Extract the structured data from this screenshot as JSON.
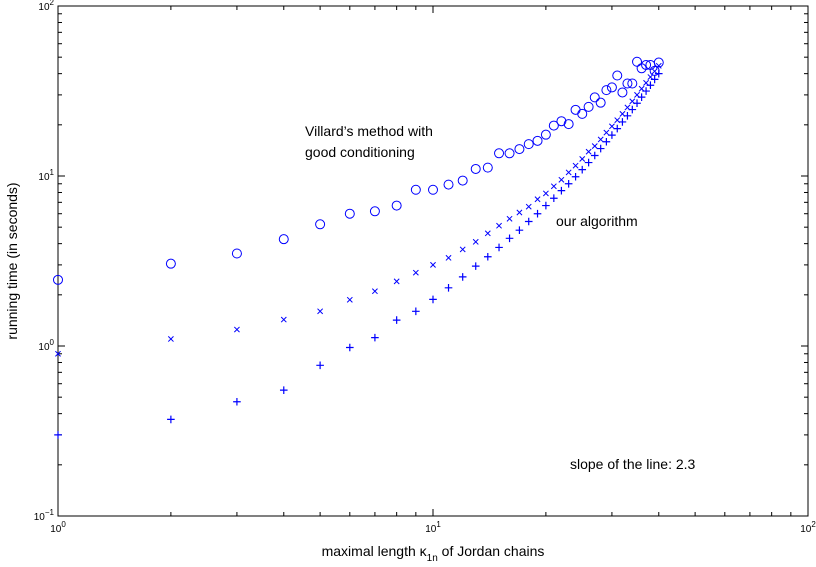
{
  "chart_data": {
    "type": "scatter",
    "xscale": "log",
    "yscale": "log",
    "xlim": [
      1,
      100
    ],
    "ylim": [
      0.1,
      100
    ],
    "grid": false,
    "xlabel": {
      "pre": "maximal length ",
      "sym": "κ",
      "sub": "1n",
      "post": " of Jordan chains"
    },
    "ylabel": "running time (in seconds)",
    "xticks": [
      {
        "value": 1,
        "base": "10",
        "exp": "0"
      },
      {
        "value": 10,
        "base": "10",
        "exp": "1"
      },
      {
        "value": 100,
        "base": "10",
        "exp": "2"
      }
    ],
    "yticks": [
      {
        "value": 0.1,
        "base": "10",
        "exp": "−1"
      },
      {
        "value": 1,
        "base": "10",
        "exp": "0"
      },
      {
        "value": 10,
        "base": "10",
        "exp": "1"
      },
      {
        "value": 100,
        "base": "10",
        "exp": "2"
      }
    ],
    "annotations": {
      "villard_line1": "Villard’s method with",
      "villard_line2": "good conditioning",
      "ours": "our algorithm",
      "slope": "slope of the line: 2.3"
    },
    "marker_color": "#0000ff",
    "series": [
      {
        "marker": "circle",
        "x": [
          1,
          2,
          3,
          4,
          5,
          6,
          7,
          8,
          9,
          10,
          11,
          12,
          13,
          14,
          15,
          16,
          17,
          18,
          19,
          20,
          21,
          22,
          23,
          24,
          25,
          26,
          27,
          28,
          29,
          30,
          31,
          32,
          33,
          34,
          35,
          36,
          37,
          38,
          39,
          40
        ],
        "y": [
          2.45,
          3.05,
          3.5,
          4.25,
          5.2,
          6.0,
          6.2,
          6.7,
          8.3,
          8.3,
          8.9,
          9.4,
          11.0,
          11.2,
          13.6,
          13.6,
          14.4,
          15.4,
          16.1,
          17.5,
          19.8,
          21.0,
          20.2,
          24.5,
          23.2,
          25.5,
          29.0,
          27.0,
          32.0,
          33.2,
          39.0,
          31.0,
          35.0,
          35.0,
          47.0,
          43.0,
          45.0,
          45.0,
          41.5,
          46.5
        ]
      },
      {
        "marker": "x",
        "x": [
          1,
          2,
          3,
          4,
          5,
          6,
          7,
          8,
          9,
          10,
          11,
          12,
          13,
          14,
          15,
          16,
          17,
          18,
          19,
          20,
          21,
          22,
          23,
          24,
          25,
          26,
          27,
          28,
          29,
          30,
          31,
          32,
          33,
          34,
          35,
          36,
          37,
          38,
          39,
          40
        ],
        "y": [
          0.9,
          1.1,
          1.25,
          1.43,
          1.6,
          1.87,
          2.1,
          2.4,
          2.7,
          3.0,
          3.3,
          3.7,
          4.1,
          4.6,
          5.1,
          5.6,
          6.1,
          6.6,
          7.3,
          7.9,
          8.7,
          9.5,
          10.5,
          11.5,
          12.6,
          13.9,
          15.0,
          16.4,
          18.0,
          19.6,
          21.3,
          23.2,
          25.3,
          27.5,
          30.0,
          32.6,
          35.3,
          38.2,
          41.3,
          44.5
        ]
      },
      {
        "marker": "plus",
        "x": [
          1,
          2,
          3,
          4,
          5,
          6,
          7,
          8,
          9,
          10,
          11,
          12,
          13,
          14,
          15,
          16,
          17,
          18,
          19,
          20,
          21,
          22,
          23,
          24,
          25,
          26,
          27,
          28,
          29,
          30,
          31,
          32,
          33,
          34,
          35,
          36,
          37,
          38,
          39,
          40
        ],
        "y": [
          0.3,
          0.37,
          0.47,
          0.55,
          0.77,
          0.98,
          1.12,
          1.42,
          1.6,
          1.88,
          2.2,
          2.55,
          2.95,
          3.35,
          3.8,
          4.3,
          4.8,
          5.4,
          6.0,
          6.7,
          7.4,
          8.2,
          9.0,
          9.9,
          10.9,
          12.0,
          13.2,
          14.5,
          15.9,
          17.4,
          19.0,
          20.8,
          22.6,
          24.6,
          26.8,
          29.1,
          31.6,
          34.2,
          37.0,
          40.0
        ]
      }
    ]
  }
}
